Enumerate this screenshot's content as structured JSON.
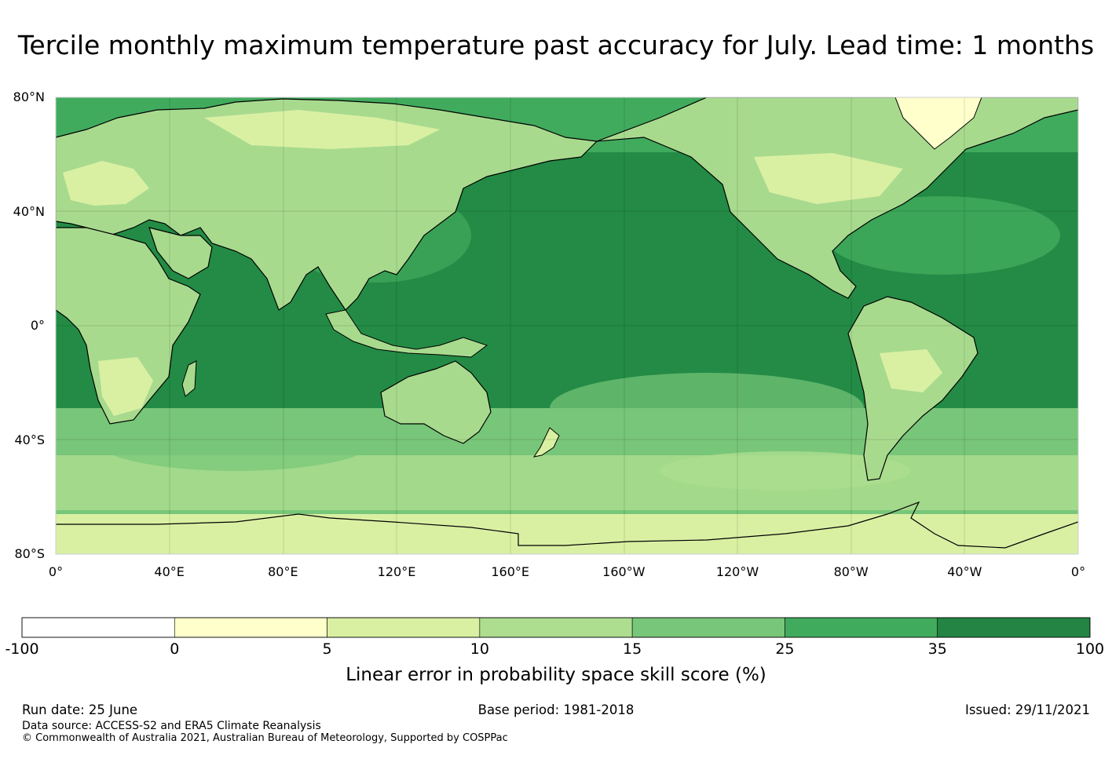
{
  "title": "Tercile monthly maximum temperature past accuracy for July. Lead time: 1 months",
  "map": {
    "lat_labels": [
      {
        "value": 80,
        "label": "80°N"
      },
      {
        "value": 40,
        "label": "40°N"
      },
      {
        "value": 0,
        "label": "0°"
      },
      {
        "value": -40,
        "label": "40°S"
      },
      {
        "value": -80,
        "label": "80°S"
      }
    ],
    "lon_labels": [
      "0°",
      "40°E",
      "80°E",
      "120°E",
      "160°E",
      "160°W",
      "120°W",
      "80°W",
      "40°W",
      "0°"
    ],
    "lat_range": [
      -80,
      80
    ],
    "lon_range": [
      0,
      360
    ],
    "grid": true,
    "land_color": "#a8da8e",
    "ocean_color": "#238b45"
  },
  "colorbar": {
    "ticks": [
      "-100",
      "0",
      "5",
      "10",
      "15",
      "25",
      "35",
      "100"
    ],
    "colors": [
      "#ffffff",
      "#ffffcc",
      "#d9f0a3",
      "#addd8e",
      "#78c679",
      "#41ab5d",
      "#238443"
    ],
    "label": "Linear error in probability space skill score (%)"
  },
  "footer": {
    "run_date": "Run date: 25 June",
    "base_period": "Base period: 1981-2018",
    "issued": "Issued: 29/11/2021",
    "data_source": "Data source: ACCESS-S2 and ERA5 Climate Reanalysis",
    "copyright": "© Commonwealth of Australia 2021, Australian Bureau of Meteorology, Supported by COSPPac"
  }
}
